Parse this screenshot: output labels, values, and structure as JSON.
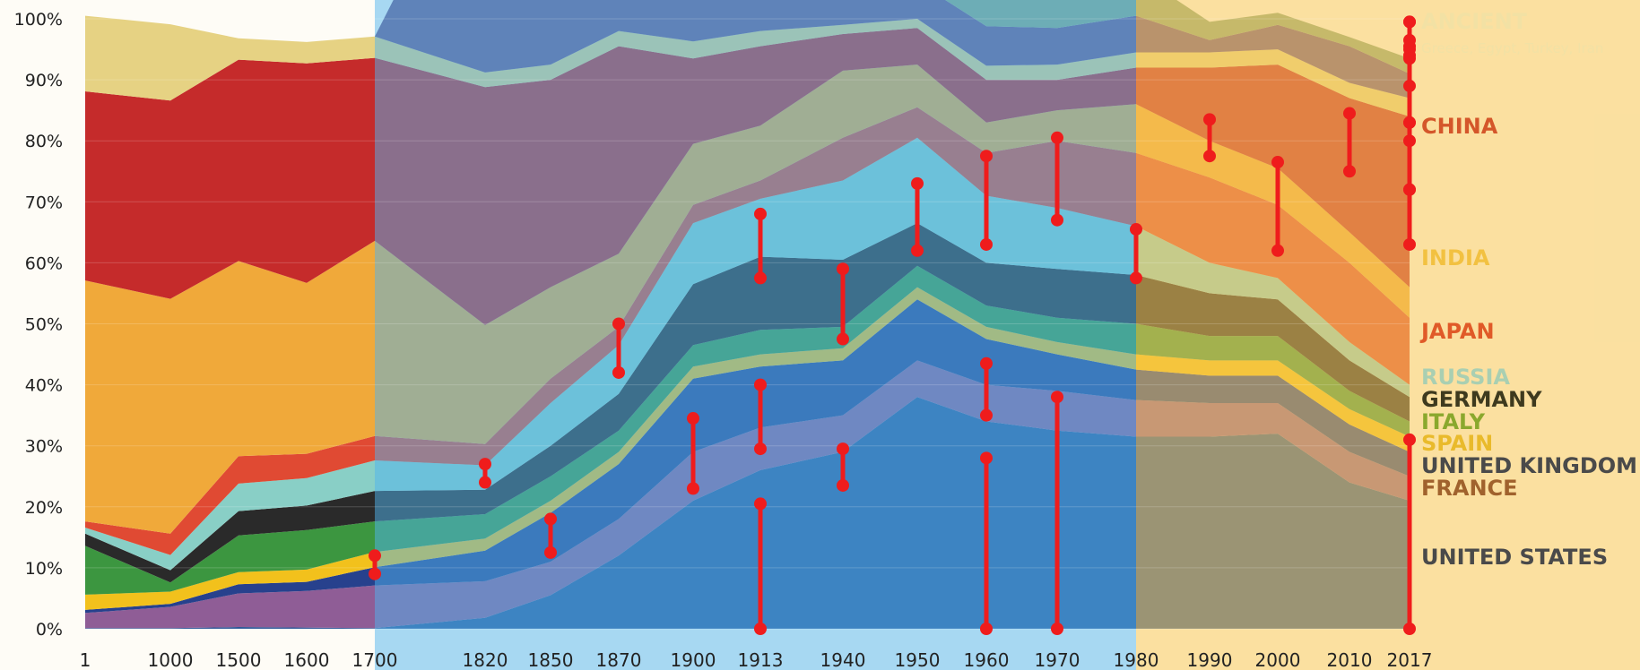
{
  "chart_data": {
    "type": "area",
    "stacked": true,
    "normalized": true,
    "ylim": [
      0,
      100
    ],
    "y_ticks": [
      "0%",
      "10%",
      "20%",
      "30%",
      "40%",
      "50%",
      "60%",
      "70%",
      "80%",
      "90%",
      "100%"
    ],
    "x_ticks": [
      "1",
      "1000",
      "1500",
      "1600",
      "1700",
      "1820",
      "1850",
      "1870",
      "1900",
      "1913",
      "1940",
      "1950",
      "1960",
      "1970",
      "1980",
      "1990",
      "2000",
      "2010",
      "2017"
    ],
    "grid": true,
    "legend": "right",
    "highlight_bands": [
      {
        "from": "1700",
        "to": "1980",
        "color": "#4fb4ee",
        "opacity": 0.5
      },
      {
        "from": "1980",
        "to": "2017",
        "color": "#f7c95a",
        "opacity": 0.55
      }
    ],
    "series": [
      {
        "name": "UNITED STATES",
        "color": "#2a5596",
        "label_color": "#4a4a4a",
        "values": [
          0.1,
          0.1,
          0.3,
          0.2,
          0.1,
          1.8,
          5.5,
          12,
          21,
          26,
          29,
          38,
          34,
          32.5,
          31.5,
          31.5,
          32,
          24,
          21
        ]
      },
      {
        "name": "FRANCE",
        "color": "#8f5d96",
        "label_color": "#a0622d",
        "values": [
          2.5,
          3.5,
          5.5,
          6,
          7,
          6,
          5.5,
          6,
          8,
          7,
          6,
          6,
          6,
          6.5,
          6,
          5.5,
          5,
          5,
          4
        ]
      },
      {
        "name": "UNITED KINGDOM",
        "color": "#27418d",
        "label_color": "#4a4a4a",
        "values": [
          0.5,
          0.5,
          1.5,
          1.5,
          3,
          5,
          8,
          9,
          12,
          10,
          9,
          10,
          7.5,
          6,
          5,
          4.5,
          4.5,
          4.5,
          4
        ]
      },
      {
        "name": "SPAIN",
        "color": "#f2c11c",
        "label_color": "#e9ba2b",
        "values": [
          2.5,
          2,
          2,
          2,
          2.5,
          2,
          2,
          2,
          2,
          2,
          2,
          2,
          2,
          2,
          2.5,
          2.5,
          2.5,
          2.5,
          2.5
        ]
      },
      {
        "name": "ITALY",
        "color": "#3c9640",
        "label_color": "#8aa82d",
        "values": [
          8,
          1.5,
          6,
          6.5,
          5,
          4,
          4,
          3.5,
          3.5,
          4,
          3.5,
          3.5,
          3.5,
          4,
          5,
          4,
          4,
          3,
          2.5
        ]
      },
      {
        "name": "GERMANY",
        "color": "#2a2a2a",
        "label_color": "#3e3a1e",
        "values": [
          2,
          2,
          4,
          4,
          5,
          4,
          5,
          6,
          10,
          12,
          11,
          7,
          7,
          8,
          8,
          7,
          6,
          5,
          4
        ]
      },
      {
        "name": "RUSSIA",
        "color": "#89cfc6",
        "label_color": "#a9cfb2",
        "values": [
          1,
          2.5,
          4.5,
          4.5,
          5,
          4,
          7,
          8,
          10,
          9.5,
          13,
          14,
          11,
          10,
          8,
          5,
          3.5,
          3,
          2
        ]
      },
      {
        "name": "JAPAN",
        "color": "#e04a33",
        "label_color": "#e05a28",
        "values": [
          1,
          3.5,
          4.5,
          4,
          4,
          3.5,
          4,
          3,
          3,
          3,
          7,
          5,
          7,
          11,
          12,
          14,
          12,
          13,
          11
        ]
      },
      {
        "name": "INDIA",
        "color": "#f0a93a",
        "label_color": "#f2c141",
        "values": [
          39.5,
          38.5,
          32,
          28,
          32,
          19.5,
          15,
          12,
          10,
          9,
          11,
          7,
          5,
          5,
          8,
          6,
          6,
          5,
          5
        ]
      },
      {
        "name": "CHINA",
        "color": "#c52b2b",
        "label_color": "#d4562a",
        "values": [
          31,
          32.5,
          33,
          36,
          30,
          39,
          34,
          34,
          14,
          13,
          6,
          6,
          7,
          5,
          6,
          12,
          17,
          22,
          28
        ]
      },
      {
        "name": "ANCIENT",
        "color": "#e6d283",
        "label_color": "#f2e1a4",
        "subtitle": "Greece, Egypt, Turkey, Iran",
        "values": [
          12.4,
          12.5,
          3.5,
          3.5,
          3.5,
          2.4,
          2.5,
          2.5,
          2.8,
          2.5,
          1.5,
          1.5,
          2.3,
          2.5,
          2.5,
          2.5,
          2.5,
          2.5,
          3
        ]
      },
      {
        "name": "",
        "color": "#6e5384",
        "label_color": "#6e5384",
        "values": [
          0,
          0,
          0,
          0,
          0,
          41.4,
          28,
          18,
          14,
          10,
          7,
          6,
          6.5,
          6,
          6,
          2,
          4,
          6,
          4
        ]
      },
      {
        "name": "",
        "color": "#8ba67e",
        "label_color": "#8ba67e",
        "values": [
          0,
          0,
          0,
          0,
          0,
          0,
          0,
          8,
          12,
          11,
          11,
          10,
          8,
          7,
          7,
          3,
          2,
          1.5,
          2.5
        ]
      }
    ],
    "markers": [
      {
        "x": "1700",
        "y0": 9,
        "y1": 12
      },
      {
        "x": "1820",
        "y0": 24,
        "y1": 27
      },
      {
        "x": "1850",
        "y0": 12.5,
        "y1": 18
      },
      {
        "x": "1870",
        "y0": 42,
        "y1": 50
      },
      {
        "x": "1900",
        "y0": 23,
        "y1": 34.5
      },
      {
        "x": "1913",
        "y0": 0,
        "y1": 20.5
      },
      {
        "x": "1913",
        "y0": 29.5,
        "y1": 40
      },
      {
        "x": "1913",
        "y0": 57.5,
        "y1": 68
      },
      {
        "x": "1940",
        "y0": 23.5,
        "y1": 29.5
      },
      {
        "x": "1940",
        "y0": 47.5,
        "y1": 59
      },
      {
        "x": "1950",
        "y0": 62,
        "y1": 73
      },
      {
        "x": "1960",
        "y0": 0,
        "y1": 28
      },
      {
        "x": "1960",
        "y0": 35,
        "y1": 43.5
      },
      {
        "x": "1960",
        "y0": 63,
        "y1": 77.5
      },
      {
        "x": "1970",
        "y0": 0,
        "y1": 38
      },
      {
        "x": "1970",
        "y0": 67,
        "y1": 80.5
      },
      {
        "x": "1980",
        "y0": 57.5,
        "y1": 65.5
      },
      {
        "x": "1990",
        "y0": 77.5,
        "y1": 83.5
      },
      {
        "x": "2000",
        "y0": 62,
        "y1": 76.5
      },
      {
        "x": "2010",
        "y0": 75,
        "y1": 84.5
      },
      {
        "x": "2017",
        "y0": 72,
        "y1": 83
      },
      {
        "x": "2017",
        "y0": 89,
        "y1": 95.5
      },
      {
        "x": "2017",
        "y0": 96.5,
        "y1": 99.5
      },
      {
        "x": "2017",
        "y0": 0,
        "y1": 31
      },
      {
        "x": "2017",
        "y0": 83,
        "y1": 95
      },
      {
        "x": "2017",
        "y0": 72,
        "y1": 80
      },
      {
        "x": "2017",
        "y0": 63,
        "y1": 94
      },
      {
        "x": "2017",
        "y0": 93.5,
        "y1": 99.5
      }
    ]
  }
}
